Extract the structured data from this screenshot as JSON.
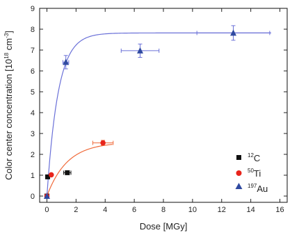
{
  "chart_data": {
    "type": "scatter",
    "xlabel": "Dose [MGy]",
    "ylabel_main": "Color center concentration [10",
    "ylabel_exp": "18",
    "ylabel_unit": " cm",
    "ylabel_unit_exp": "-3",
    "ylabel_close": "]",
    "xlim": [
      -0.5,
      16.5
    ],
    "ylim": [
      -0.3,
      9
    ],
    "xticks": [
      0,
      2,
      4,
      6,
      8,
      10,
      12,
      14,
      16
    ],
    "yticks": [
      0,
      1,
      2,
      3,
      4,
      5,
      6,
      7,
      8,
      9
    ],
    "legend_position": "lower-right",
    "series": [
      {
        "name": "12C",
        "name_sup": "12",
        "name_base": "C",
        "marker": "square",
        "color": "#111111",
        "points": [
          {
            "x": 0,
            "y": 0.0
          },
          {
            "x": 0.05,
            "y": 0.92
          },
          {
            "x": 1.4,
            "y": 1.12,
            "xerr": 0.25
          }
        ]
      },
      {
        "name": "50Ti",
        "name_sup": "50",
        "name_base": "Ti",
        "marker": "circle",
        "color": "#e8241b",
        "points": [
          {
            "x": 0,
            "y": 0.0
          },
          {
            "x": 0.3,
            "y": 1.02
          },
          {
            "x": 3.85,
            "y": 2.55,
            "xerr": 0.7,
            "yerr": 0.12
          }
        ],
        "fit": {
          "color": "#f06a3a",
          "saturation": 2.58,
          "rate": 0.72,
          "x_end": 4.5
        }
      },
      {
        "name": "197Au",
        "name_sup": "197",
        "name_base": "Au",
        "marker": "triangle",
        "color": "#2f4aa0",
        "points": [
          {
            "x": 0,
            "y": 0.0
          },
          {
            "x": 1.3,
            "y": 6.42,
            "xerr": 0.2,
            "yerr": 0.32
          },
          {
            "x": 6.4,
            "y": 6.97,
            "xerr": 1.3,
            "yerr": 0.32
          },
          {
            "x": 12.8,
            "y": 7.82,
            "xerr": 2.5,
            "yerr": 0.35
          }
        ],
        "fit": {
          "color": "#6a70d8",
          "saturation": 7.82,
          "rate": 1.3,
          "x_end": 15.4
        }
      }
    ]
  }
}
